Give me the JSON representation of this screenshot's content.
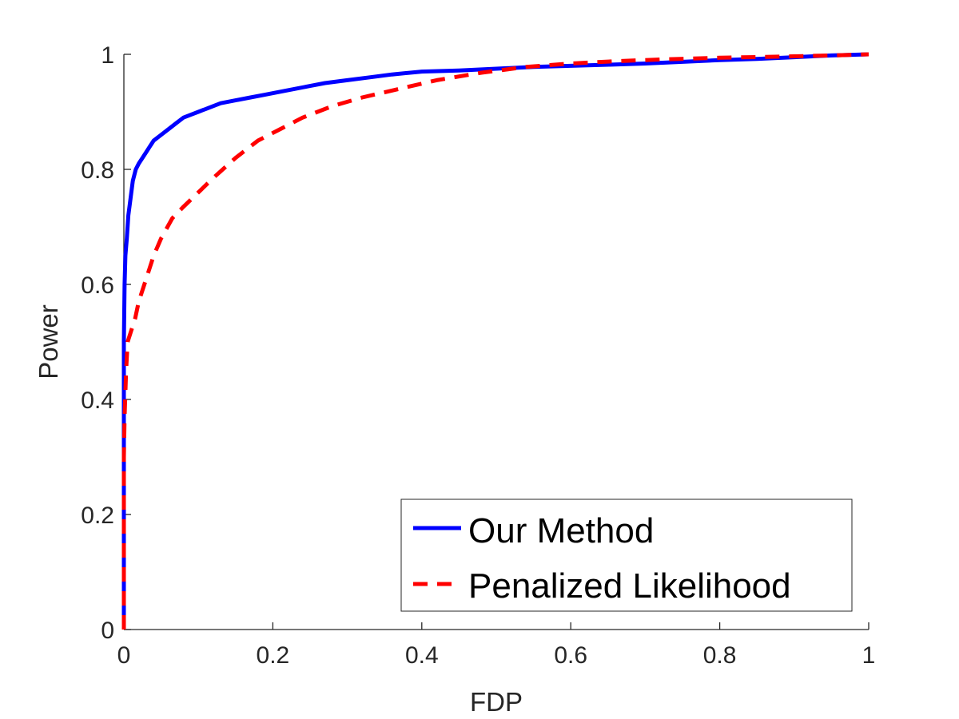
{
  "chart_data": {
    "type": "line",
    "title": "",
    "xlabel": "FDP",
    "ylabel": "Power",
    "xlim": [
      0,
      1
    ],
    "ylim": [
      0,
      1
    ],
    "xticks": [
      0,
      0.2,
      0.4,
      0.6,
      0.8,
      1
    ],
    "yticks": [
      0,
      0.2,
      0.4,
      0.6,
      0.8,
      1
    ],
    "xtick_labels": [
      "0",
      "0.2",
      "0.4",
      "0.6",
      "0.8",
      "1"
    ],
    "ytick_labels": [
      "0",
      "0.2",
      "0.4",
      "0.6",
      "0.8",
      "1"
    ],
    "grid": false,
    "legend_position": "bottom-right",
    "series": [
      {
        "name": "Our Method",
        "color": "#0000ff",
        "style": "solid",
        "x": [
          0,
          0,
          0.001,
          0.002,
          0.004,
          0.006,
          0.009,
          0.012,
          0.016,
          0.02,
          0.025,
          0.03,
          0.035,
          0.04,
          0.05,
          0.06,
          0.07,
          0.08,
          0.09,
          0.1,
          0.11,
          0.12,
          0.13,
          0.15,
          0.17,
          0.19,
          0.21,
          0.23,
          0.25,
          0.27,
          0.3,
          0.33,
          0.36,
          0.4,
          0.45,
          0.5,
          0.55,
          0.6,
          0.65,
          0.7,
          0.75,
          0.8,
          0.85,
          0.9,
          0.95,
          1.0
        ],
        "y": [
          0,
          0.5,
          0.6,
          0.65,
          0.68,
          0.72,
          0.75,
          0.78,
          0.8,
          0.81,
          0.82,
          0.83,
          0.84,
          0.85,
          0.86,
          0.87,
          0.88,
          0.89,
          0.895,
          0.9,
          0.905,
          0.91,
          0.915,
          0.92,
          0.925,
          0.93,
          0.935,
          0.94,
          0.945,
          0.95,
          0.955,
          0.96,
          0.965,
          0.97,
          0.972,
          0.975,
          0.978,
          0.98,
          0.982,
          0.984,
          0.987,
          0.99,
          0.992,
          0.995,
          0.998,
          1.0
        ]
      },
      {
        "name": "Penalized Likelihood",
        "color": "#ff0000",
        "style": "dashed",
        "x": [
          0,
          0,
          0.001,
          0.003,
          0.005,
          0.01,
          0.015,
          0.02,
          0.03,
          0.04,
          0.05,
          0.065,
          0.08,
          0.1,
          0.12,
          0.15,
          0.18,
          0.21,
          0.24,
          0.28,
          0.32,
          0.37,
          0.42,
          0.48,
          0.54,
          0.6,
          0.66,
          0.72,
          0.8,
          0.88,
          0.95,
          1.0
        ],
        "y": [
          0,
          0.3,
          0.37,
          0.45,
          0.5,
          0.52,
          0.54,
          0.57,
          0.61,
          0.65,
          0.68,
          0.715,
          0.735,
          0.76,
          0.785,
          0.82,
          0.85,
          0.87,
          0.89,
          0.91,
          0.925,
          0.94,
          0.955,
          0.968,
          0.978,
          0.984,
          0.988,
          0.991,
          0.994,
          0.996,
          0.998,
          1.0
        ]
      }
    ]
  }
}
